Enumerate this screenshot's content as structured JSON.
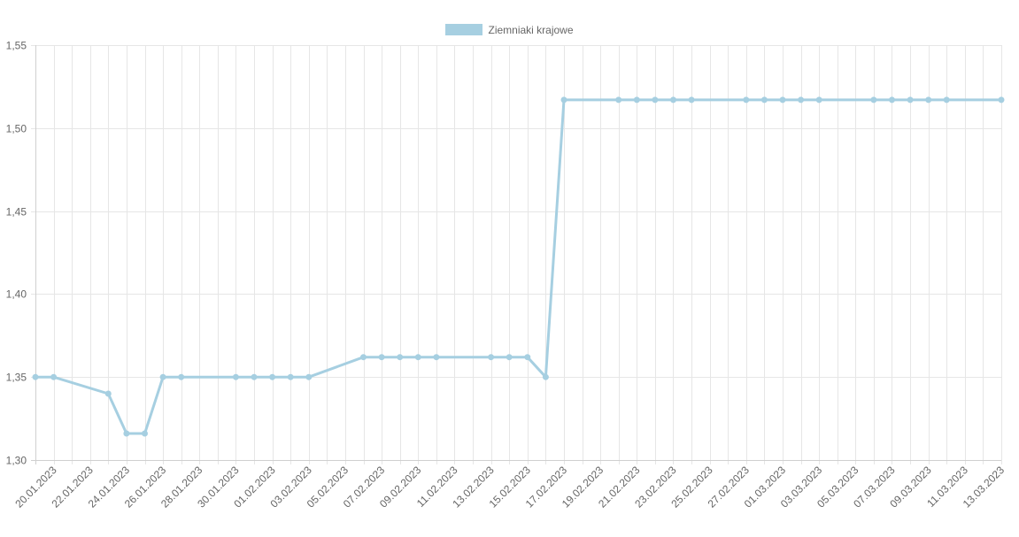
{
  "legend": {
    "label": "Ziemniaki krajowe",
    "color": "#a6cfe1"
  },
  "chart_data": {
    "type": "line",
    "legend_position": "top-center",
    "grid": true,
    "ylim": [
      1.3,
      1.55
    ],
    "y_ticks": [
      "1,30",
      "1,35",
      "1,40",
      "1,45",
      "1,50",
      "1,55"
    ],
    "x_tick_labels": [
      "20.01.2023",
      "22.01.2023",
      "24.01.2023",
      "26.01.2023",
      "28.01.2023",
      "30.01.2023",
      "01.02.2023",
      "03.02.2023",
      "05.02.2023",
      "07.02.2023",
      "09.02.2023",
      "11.02.2023",
      "13.02.2023",
      "15.02.2023",
      "17.02.2023",
      "19.02.2023",
      "21.02.2023",
      "23.02.2023",
      "25.02.2023",
      "27.02.2023",
      "01.03.2023",
      "03.03.2023",
      "05.03.2023",
      "07.03.2023",
      "09.03.2023",
      "11.03.2023",
      "13.03.2023"
    ],
    "series": [
      {
        "name": "Ziemniaki krajowe",
        "color": "#a6cfe1",
        "points": [
          [
            "19.01.2023",
            1.35
          ],
          [
            "20.01.2023",
            1.35
          ],
          [
            "23.01.2023",
            1.34
          ],
          [
            "24.01.2023",
            1.316
          ],
          [
            "25.01.2023",
            1.316
          ],
          [
            "26.01.2023",
            1.35
          ],
          [
            "27.01.2023",
            1.35
          ],
          [
            "30.01.2023",
            1.35
          ],
          [
            "31.01.2023",
            1.35
          ],
          [
            "01.02.2023",
            1.35
          ],
          [
            "02.02.2023",
            1.35
          ],
          [
            "03.02.2023",
            1.35
          ],
          [
            "06.02.2023",
            1.362
          ],
          [
            "07.02.2023",
            1.362
          ],
          [
            "08.02.2023",
            1.362
          ],
          [
            "09.02.2023",
            1.362
          ],
          [
            "10.02.2023",
            1.362
          ],
          [
            "13.02.2023",
            1.362
          ],
          [
            "14.02.2023",
            1.362
          ],
          [
            "15.02.2023",
            1.362
          ],
          [
            "16.02.2023",
            1.35
          ],
          [
            "17.02.2023",
            1.517
          ],
          [
            "20.02.2023",
            1.517
          ],
          [
            "21.02.2023",
            1.517
          ],
          [
            "22.02.2023",
            1.517
          ],
          [
            "23.02.2023",
            1.517
          ],
          [
            "24.02.2023",
            1.517
          ],
          [
            "27.02.2023",
            1.517
          ],
          [
            "28.02.2023",
            1.517
          ],
          [
            "01.03.2023",
            1.517
          ],
          [
            "02.03.2023",
            1.517
          ],
          [
            "03.03.2023",
            1.517
          ],
          [
            "06.03.2023",
            1.517
          ],
          [
            "07.03.2023",
            1.517
          ],
          [
            "08.03.2023",
            1.517
          ],
          [
            "09.03.2023",
            1.517
          ],
          [
            "10.03.2023",
            1.517
          ],
          [
            "13.03.2023",
            1.517
          ]
        ]
      }
    ]
  }
}
